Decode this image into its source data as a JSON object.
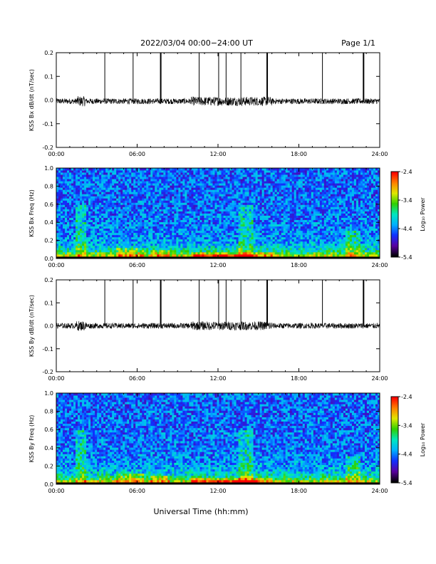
{
  "header": {
    "title": "2022/03/04  00:00−24:00 UT",
    "page": "Page 1/1"
  },
  "footer": {
    "xlabel": "Universal Time (hh:mm)"
  },
  "colorbar": {
    "label": "Log₁₀ Power",
    "ticks": [
      "-2.4",
      "-3.4",
      "-4.4",
      "-5.4"
    ],
    "range": [
      -5.4,
      -2.4
    ],
    "colors": [
      "#000000",
      "#5a00a0",
      "#1030ff",
      "#00b0ff",
      "#00e8c0",
      "#30d000",
      "#e0e800",
      "#ff8000",
      "#ff0000"
    ]
  },
  "chart_data": [
    {
      "type": "line",
      "ylabel": "KSS Bx dB/dt (nT/sec)",
      "xlim": [
        0,
        24
      ],
      "ylim": [
        -0.2,
        0.2
      ],
      "xticks": [
        "00:00",
        "06:00",
        "12:00",
        "18:00",
        "24:00"
      ],
      "yticks": [
        "0.2",
        "0.1",
        "0.0",
        "-0.1",
        "-0.2"
      ],
      "baseline": -0.005,
      "noise_amplitude": 0.012,
      "spikes_hours": [
        3.6,
        5.7,
        7.75,
        10.6,
        12.05,
        12.6,
        13.7,
        15.65,
        19.75,
        22.8
      ],
      "spike_top": 0.2
    },
    {
      "type": "heatmap",
      "ylabel": "KSS Bx Freq (Hz)",
      "xlim": [
        0,
        24
      ],
      "ylim": [
        0,
        1.0
      ],
      "xticks": [
        "00:00",
        "06:00",
        "12:00",
        "18:00",
        "24:00"
      ],
      "yticks": [
        "1.0",
        "0.8",
        "0.6",
        "0.4",
        "0.2",
        "0.0"
      ]
    },
    {
      "type": "line",
      "ylabel": "KSS By dB/dt (nT/sec)",
      "xlim": [
        0,
        24
      ],
      "ylim": [
        -0.2,
        0.2
      ],
      "xticks": [
        "00:00",
        "06:00",
        "12:00",
        "18:00",
        "24:00"
      ],
      "yticks": [
        "0.2",
        "0.1",
        "0.0",
        "-0.1",
        "-0.2"
      ],
      "baseline": 0.0,
      "noise_amplitude": 0.012,
      "spikes_hours": [
        3.6,
        5.7,
        7.75,
        10.6,
        12.05,
        12.6,
        13.7,
        15.65,
        19.75,
        22.8
      ],
      "spike_top": 0.2
    },
    {
      "type": "heatmap",
      "ylabel": "KSS By Freq (Hz)",
      "xlim": [
        0,
        24
      ],
      "ylim": [
        0,
        1.0
      ],
      "xticks": [
        "00:00",
        "06:00",
        "12:00",
        "18:00",
        "24:00"
      ],
      "yticks": [
        "1.0",
        "0.8",
        "0.6",
        "0.4",
        "0.2",
        "0.0"
      ]
    }
  ]
}
